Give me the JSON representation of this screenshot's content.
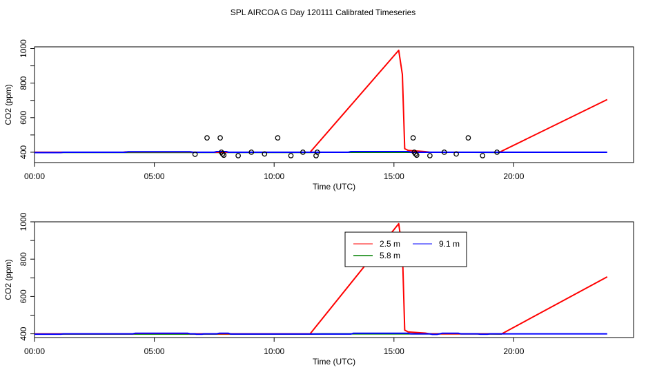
{
  "title": "SPL AIRCOA G  Day 120111  Calibrated Timeseries",
  "colors": {
    "2.5 m": "#ff0000",
    "5.8 m": "#008000",
    "9.1 m": "#0000ff",
    "points": "#000000"
  },
  "chart_data": [
    {
      "type": "line",
      "xlabel": "Time (UTC)",
      "ylabel": "CO2 (ppm)",
      "xlim": [
        0,
        25
      ],
      "ylim": [
        340,
        1010
      ],
      "xticks": [
        0,
        5,
        10,
        15,
        20
      ],
      "xtick_labels": [
        "00:00",
        "05:00",
        "10:00",
        "15:00",
        "20:00"
      ],
      "yticks": [
        400,
        600,
        800,
        1000
      ],
      "ytick_labels": [
        "400",
        "600",
        "800",
        "1000"
      ],
      "yminor_ticks": [
        500,
        700,
        900
      ],
      "series": [
        {
          "name": "2.5 m",
          "color": "#ff0000",
          "points": [
            [
              0,
              400
            ],
            [
              3.7,
              400
            ],
            [
              3.8,
              402
            ],
            [
              6.5,
              402
            ],
            [
              6.6,
              400
            ],
            [
              11.5,
              400
            ],
            [
              15.2,
              990
            ],
            [
              15.35,
              850
            ],
            [
              15.45,
              420
            ],
            [
              15.6,
              410
            ],
            [
              16.3,
              404
            ],
            [
              16.5,
              400
            ],
            [
              19.4,
              400
            ],
            [
              23.9,
              705
            ]
          ]
        },
        {
          "name": "5.8 m",
          "color": "#008000",
          "points": [
            [
              0,
              399
            ],
            [
              11.5,
              399
            ],
            [
              12.0,
              400
            ],
            [
              18.3,
              400
            ],
            [
              19.4,
              399
            ]
          ]
        },
        {
          "name": "9.1 m",
          "color": "#0000ff",
          "points": [
            [
              0,
              398
            ],
            [
              1.1,
              398
            ],
            [
              1.2,
              400
            ],
            [
              3.8,
              400
            ],
            [
              3.9,
              403
            ],
            [
              6.5,
              403
            ],
            [
              6.6,
              400
            ],
            [
              7.5,
              400
            ],
            [
              7.6,
              404
            ],
            [
              8.0,
              404
            ],
            [
              8.1,
              400
            ],
            [
              13.1,
              400
            ],
            [
              13.2,
              404
            ],
            [
              15.6,
              404
            ],
            [
              15.7,
              400
            ],
            [
              19.4,
              400
            ],
            [
              23.9,
              400
            ]
          ]
        }
      ],
      "scatter": {
        "name": "",
        "color": "#000000",
        "x": [
          6.7,
          7.2,
          7.75,
          7.8,
          7.85,
          7.9,
          8.5,
          9.05,
          9.6,
          10.15,
          10.7,
          11.2,
          11.75,
          11.8,
          15.8,
          15.85,
          15.9,
          15.95,
          16.5,
          17.1,
          17.6,
          18.1,
          18.7,
          19.3
        ],
        "y": [
          388,
          483,
          483,
          400,
          390,
          383,
          380,
          400,
          390,
          483,
          380,
          400,
          380,
          400,
          483,
          400,
          390,
          383,
          380,
          400,
          390,
          483,
          380,
          400
        ]
      }
    },
    {
      "type": "line",
      "xlabel": "Time (UTC)",
      "ylabel": "CO2 (ppm)",
      "xlim": [
        0,
        25
      ],
      "ylim": [
        380,
        1000
      ],
      "xticks": [
        0,
        5,
        10,
        15,
        20
      ],
      "xtick_labels": [
        "00:00",
        "05:00",
        "10:00",
        "15:00",
        "20:00"
      ],
      "yticks": [
        400,
        600,
        800,
        1000
      ],
      "ytick_labels": [
        "400",
        "600",
        "800",
        "1000"
      ],
      "yminor_ticks": [
        500,
        700,
        900
      ],
      "legend": {
        "placement": "top-center",
        "entries": [
          "2.5 m",
          "9.1 m",
          "5.8 m"
        ]
      },
      "series": [
        {
          "name": "2.5 m",
          "color": "#ff0000",
          "points": [
            [
              0,
              400
            ],
            [
              4.1,
              400
            ],
            [
              4.2,
              402
            ],
            [
              6.4,
              402
            ],
            [
              6.5,
              400
            ],
            [
              11.5,
              400
            ],
            [
              15.2,
              990
            ],
            [
              15.35,
              850
            ],
            [
              15.45,
              420
            ],
            [
              15.6,
              410
            ],
            [
              16.3,
              404
            ],
            [
              16.5,
              400
            ],
            [
              19.5,
              400
            ],
            [
              23.9,
              705
            ]
          ]
        },
        {
          "name": "5.8 m",
          "color": "#008000",
          "points": [
            [
              0,
              399
            ],
            [
              11.5,
              399
            ],
            [
              12.0,
              400
            ],
            [
              18.4,
              400
            ],
            [
              19.5,
              399
            ]
          ]
        },
        {
          "name": "9.1 m",
          "color": "#0000ff",
          "points": [
            [
              0,
              398
            ],
            [
              1.1,
              398
            ],
            [
              1.2,
              400
            ],
            [
              4.1,
              400
            ],
            [
              4.2,
              403
            ],
            [
              6.4,
              403
            ],
            [
              6.5,
              400
            ],
            [
              6.7,
              400
            ],
            [
              6.75,
              398
            ],
            [
              7.0,
              398
            ],
            [
              7.05,
              400
            ],
            [
              7.6,
              400
            ],
            [
              7.7,
              403
            ],
            [
              8.1,
              403
            ],
            [
              8.2,
              399
            ],
            [
              13.2,
              399
            ],
            [
              13.3,
              403
            ],
            [
              15.6,
              403
            ],
            [
              15.7,
              400
            ],
            [
              16.5,
              400
            ],
            [
              16.6,
              397
            ],
            [
              16.8,
              397
            ],
            [
              16.9,
              400
            ],
            [
              17.0,
              403
            ],
            [
              17.7,
              403
            ],
            [
              17.8,
              400
            ],
            [
              18.5,
              400
            ],
            [
              18.6,
              398
            ],
            [
              18.9,
              398
            ],
            [
              19.0,
              400
            ],
            [
              19.5,
              400
            ],
            [
              23.9,
              400
            ]
          ]
        }
      ]
    }
  ]
}
